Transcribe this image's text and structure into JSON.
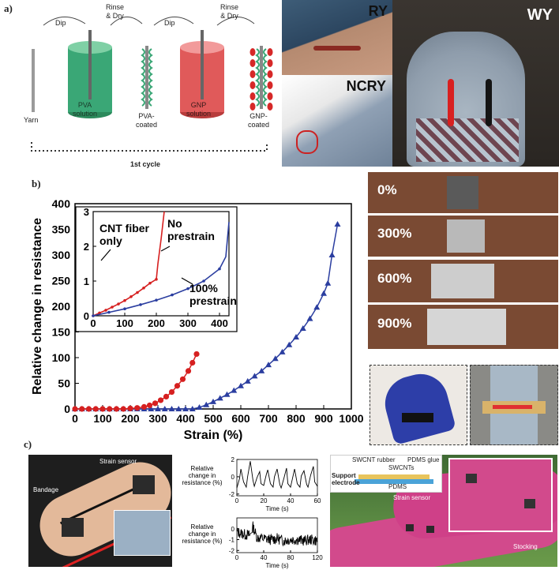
{
  "panel_a": {
    "letter": "a)",
    "steps": [
      "Dip",
      "Rinse\n& Dry",
      "Dip",
      "Rinse\n& Dry"
    ],
    "labels": [
      "Yarn",
      "PVA\nsolution",
      "PVA-\ncoated",
      "GNP\nsolution",
      "GNP-\ncoated"
    ],
    "cycle": "1st cycle",
    "photo_labels": {
      "ry": "RY",
      "ncry": "NCRY",
      "wy": "WY"
    },
    "colors": {
      "pva": "#3aa776",
      "gnp": "#e05a5a",
      "red_dot": "#d62828"
    }
  },
  "panel_b": {
    "letter": "b)",
    "strain_photos": [
      "0%",
      "300%",
      "600%",
      "900%"
    ],
    "inset_labels": {
      "cnt": "CNT fiber\nonly",
      "noprestrain": "No\nprestrain",
      "prestrain": "100%\nprestrain"
    }
  },
  "panel_c": {
    "letter": "c)",
    "bandage_labels": {
      "strain_sensor": "Strain sensor",
      "bandage": "Bandage"
    },
    "plot1": {
      "ylabel": "Relative\nchange in\nresistance (%)",
      "xlabel": "Time (s)"
    },
    "plot2": {
      "ylabel": "Relative\nchange in\nresistance (%)",
      "xlabel": "Time (s)"
    },
    "stocking_labels": {
      "swcnt_rubber": "SWCNT rubber",
      "pdms_glue": "PDMS glue",
      "swcnts": "SWCNTs",
      "support": "Support",
      "electrode": "electrode",
      "pdms": "PDMS",
      "strain_sensor": "Strain sensor",
      "stocking": "Stocking"
    }
  },
  "chart_data": [
    {
      "type": "line",
      "xlabel": "Strain (%)",
      "ylabel": "Relative change in resistance",
      "xlim": [
        0,
        1000
      ],
      "ylim": [
        0,
        400
      ],
      "xticks": [
        "0",
        "100",
        "200",
        "300",
        "400",
        "500",
        "600",
        "700",
        "800",
        "900",
        "1000"
      ],
      "yticks": [
        "0",
        "50",
        "100",
        "150",
        "200",
        "250",
        "300",
        "350",
        "400"
      ],
      "series": [
        {
          "color": "#2b3ea0",
          "marker": "triangle",
          "x": [
            0,
            25,
            50,
            75,
            100,
            125,
            150,
            175,
            200,
            225,
            250,
            275,
            300,
            325,
            350,
            375,
            400,
            425,
            450,
            475,
            500,
            525,
            550,
            575,
            600,
            625,
            650,
            675,
            700,
            725,
            750,
            775,
            800,
            825,
            850,
            875,
            900,
            915,
            930,
            950
          ],
          "y": [
            0,
            0,
            0,
            0,
            0,
            0,
            0,
            0,
            0,
            0,
            0,
            0,
            0,
            0,
            0,
            0,
            0,
            0,
            3,
            8,
            14,
            21,
            28,
            36,
            45,
            54,
            64,
            74,
            86,
            98,
            111,
            125,
            140,
            157,
            176,
            198,
            225,
            245,
            300,
            360
          ]
        },
        {
          "color": "#d62020",
          "marker": "circle",
          "x": [
            0,
            25,
            50,
            75,
            100,
            125,
            150,
            175,
            200,
            225,
            250,
            270,
            290,
            310,
            330,
            350,
            370,
            390,
            410,
            425,
            440
          ],
          "y": [
            0,
            0,
            0,
            0,
            0,
            0,
            0,
            0,
            1,
            2,
            4,
            7,
            11,
            17,
            24,
            33,
            45,
            58,
            74,
            90,
            107
          ]
        }
      ]
    },
    {
      "type": "line",
      "xlim": [
        0,
        430
      ],
      "ylim": [
        0,
        3
      ],
      "xticks": [
        "0",
        "100",
        "200",
        "300",
        "400"
      ],
      "yticks": [
        "0",
        "1",
        "2",
        "3"
      ],
      "series": [
        {
          "color": "#d62020",
          "x": [
            0,
            20,
            40,
            60,
            80,
            100,
            120,
            140,
            160,
            180,
            200,
            205,
            215,
            225
          ],
          "y": [
            0,
            0.08,
            0.16,
            0.25,
            0.34,
            0.44,
            0.55,
            0.67,
            0.8,
            0.94,
            1.05,
            1.5,
            2.2,
            3.0
          ]
        },
        {
          "color": "#2b3ea0",
          "x": [
            0,
            50,
            100,
            150,
            200,
            250,
            300,
            350,
            400,
            420,
            430
          ],
          "y": [
            0,
            0.1,
            0.2,
            0.32,
            0.45,
            0.6,
            0.78,
            1.0,
            1.35,
            1.7,
            2.7
          ]
        }
      ]
    },
    {
      "type": "line",
      "xlabel": "Time (s)",
      "xlim": [
        0,
        60
      ],
      "ylim": [
        -2.2,
        2
      ],
      "xticks": [
        "0",
        "20",
        "40",
        "60"
      ],
      "yticks": [
        "-2",
        "0",
        "2"
      ],
      "series": [
        {
          "color": "#000000",
          "x": [
            0,
            2,
            3,
            5,
            7,
            8,
            10,
            12,
            13,
            15,
            17,
            18,
            20,
            22,
            23,
            25,
            27,
            28,
            30,
            32,
            33,
            35,
            37,
            38,
            40,
            42,
            43,
            45,
            47,
            48,
            50,
            52,
            53,
            55,
            57,
            58,
            60
          ],
          "y": [
            -1.3,
            -0.2,
            0.9,
            -0.6,
            -1.2,
            0.0,
            1.8,
            -0.4,
            -1.1,
            -0.1,
            0.6,
            -0.8,
            -1.0,
            0.3,
            0.8,
            -0.8,
            -1.2,
            0.0,
            0.9,
            -0.9,
            -1.3,
            -0.2,
            1.0,
            -0.8,
            -1.2,
            0.2,
            0.9,
            -0.8,
            -1.2,
            0.1,
            0.7,
            -0.9,
            -1.2,
            0.2,
            1.2,
            -0.6,
            -1.1
          ]
        }
      ]
    },
    {
      "type": "line",
      "xlabel": "Time (s)",
      "xlim": [
        0,
        120
      ],
      "ylim": [
        -2.2,
        1
      ],
      "xticks": [
        "0",
        "40",
        "80",
        "120"
      ],
      "yticks": [
        "-2",
        "-1",
        "0"
      ],
      "series": [
        {
          "color": "#000000",
          "noise": true,
          "x": [
            0,
            10,
            20,
            24,
            30,
            40,
            50,
            60,
            70,
            80,
            90,
            100,
            110,
            120
          ],
          "y": [
            -0.3,
            -0.5,
            -0.6,
            0.2,
            -0.8,
            -0.9,
            -1.0,
            -0.9,
            -1.1,
            -1.0,
            -1.0,
            -1.1,
            -1.0,
            -1.1
          ]
        }
      ]
    }
  ]
}
